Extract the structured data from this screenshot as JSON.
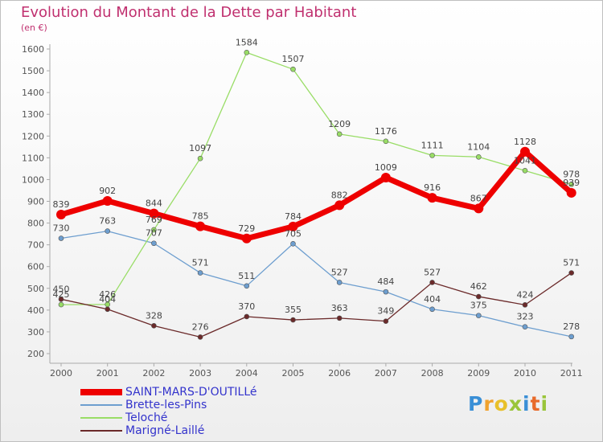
{
  "header": {
    "title": "Evolution du Montant de la Dette par Habitant",
    "subtitle": "(en €)"
  },
  "logo": {
    "text": "Proxiti",
    "letters": [
      {
        "ch": "P",
        "color": "#3a8fd6"
      },
      {
        "ch": "r",
        "color": "#f0a22e"
      },
      {
        "ch": "o",
        "color": "#e8c02a"
      },
      {
        "ch": "x",
        "color": "#9ac53a"
      },
      {
        "ch": "i",
        "color": "#3a8fd6"
      },
      {
        "ch": "t",
        "color": "#e86a2a"
      },
      {
        "ch": "i",
        "color": "#9ac53a"
      }
    ]
  },
  "chart_data": {
    "type": "line",
    "title": "Evolution du Montant de la Dette par Habitant",
    "ylabel": "(en €)",
    "x": [
      "2000",
      "2001",
      "2002",
      "2003",
      "2004",
      "2005",
      "2006",
      "2007",
      "2008",
      "2009",
      "2010",
      "2011"
    ],
    "ylim": [
      200,
      1600
    ],
    "yticks": [
      200,
      300,
      400,
      500,
      600,
      700,
      800,
      900,
      1000,
      1100,
      1200,
      1300,
      1400,
      1500,
      1600
    ],
    "grid": false,
    "legend_position": "bottom-left",
    "series": [
      {
        "name": "SAINT-MARS-D'OUTILLé",
        "color": "#ee0000",
        "width": 7,
        "marker": 6,
        "values": [
          839,
          902,
          844,
          785,
          729,
          784,
          882,
          1009,
          916,
          867,
          1128,
          939
        ]
      },
      {
        "name": "Brette-les-Pins",
        "color": "#6d9ecf",
        "width": 1.3,
        "marker": 3,
        "values": [
          730,
          763,
          707,
          571,
          511,
          705,
          527,
          484,
          404,
          375,
          323,
          278
        ]
      },
      {
        "name": "Teloché",
        "color": "#99dd66",
        "width": 1.3,
        "marker": 3,
        "values": [
          425,
          426,
          769,
          1097,
          1584,
          1507,
          1209,
          1176,
          1111,
          1104,
          1041,
          978
        ]
      },
      {
        "name": "Marigné-Laillé",
        "color": "#6b2a2a",
        "width": 1.3,
        "marker": 3,
        "values": [
          450,
          404,
          328,
          276,
          370,
          355,
          363,
          349,
          527,
          462,
          424,
          571
        ]
      }
    ],
    "data_labels": [
      [
        "839",
        "902",
        "844",
        "785",
        "729",
        "784",
        "882",
        "1009",
        "916",
        "867",
        "1128",
        "939"
      ],
      [
        "730",
        "763",
        "707",
        "571",
        "511",
        "705",
        "527",
        "484",
        "404",
        "375",
        "323",
        "278"
      ],
      [
        "425",
        "426",
        "769",
        "1097",
        "1584",
        "1507",
        "1209",
        "1176",
        "1111",
        "1104",
        "1041",
        "978"
      ],
      [
        "450",
        "404",
        "328",
        "276",
        "370",
        "355",
        "363",
        "349",
        "527",
        "462",
        "424",
        "571"
      ]
    ]
  }
}
